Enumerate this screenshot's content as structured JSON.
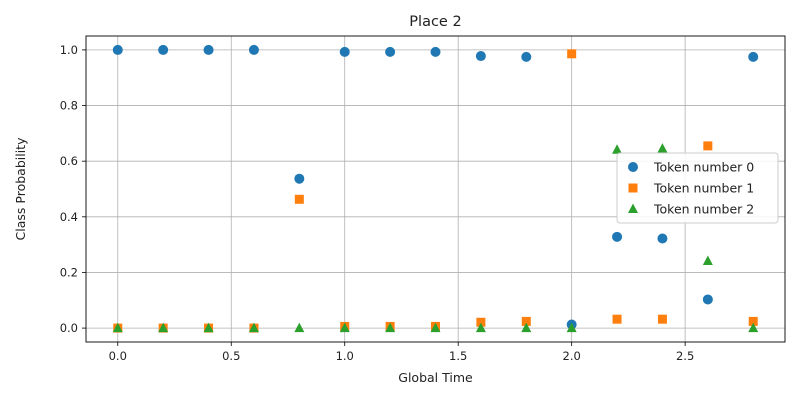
{
  "chart_data": {
    "type": "scatter",
    "title": "Place 2",
    "xlabel": "Global Time",
    "ylabel": "Class Probability",
    "xlim": [
      -0.14,
      2.94
    ],
    "ylim": [
      -0.05,
      1.05
    ],
    "xticks": [
      0.0,
      0.5,
      1.0,
      1.5,
      2.0,
      2.5
    ],
    "xtick_labels": [
      "0.0",
      "0.5",
      "1.0",
      "1.5",
      "2.0",
      "2.5"
    ],
    "yticks": [
      0.0,
      0.2,
      0.4,
      0.6,
      0.8,
      1.0
    ],
    "ytick_labels": [
      "0.0",
      "0.2",
      "0.4",
      "0.6",
      "0.8",
      "1.0"
    ],
    "grid": true,
    "legend_position": "center-right",
    "x": [
      0.0,
      0.2,
      0.4,
      0.6,
      0.8,
      1.0,
      1.2,
      1.4,
      1.6,
      1.8,
      2.0,
      2.2,
      2.4,
      2.6,
      2.8
    ],
    "series": [
      {
        "name": "Token number 0",
        "marker": "circle",
        "color": "#1f77b4",
        "values": [
          1.0,
          1.0,
          1.0,
          1.0,
          0.537,
          0.993,
          0.993,
          0.993,
          0.978,
          0.975,
          0.013,
          0.328,
          0.322,
          0.103,
          0.975
        ]
      },
      {
        "name": "Token number 1",
        "marker": "square",
        "color": "#ff7f0e",
        "values": [
          0.0,
          0.0,
          0.0,
          0.0,
          0.463,
          0.006,
          0.006,
          0.006,
          0.021,
          0.024,
          0.986,
          0.032,
          0.032,
          0.655,
          0.024
        ]
      },
      {
        "name": "Token number 2",
        "marker": "triangle",
        "color": "#2ca02c",
        "values": [
          0.0,
          0.0,
          0.0,
          0.0,
          0.0,
          0.0,
          0.0,
          0.0,
          0.0,
          0.0,
          0.0,
          0.641,
          0.645,
          0.241,
          0.0
        ]
      }
    ]
  }
}
